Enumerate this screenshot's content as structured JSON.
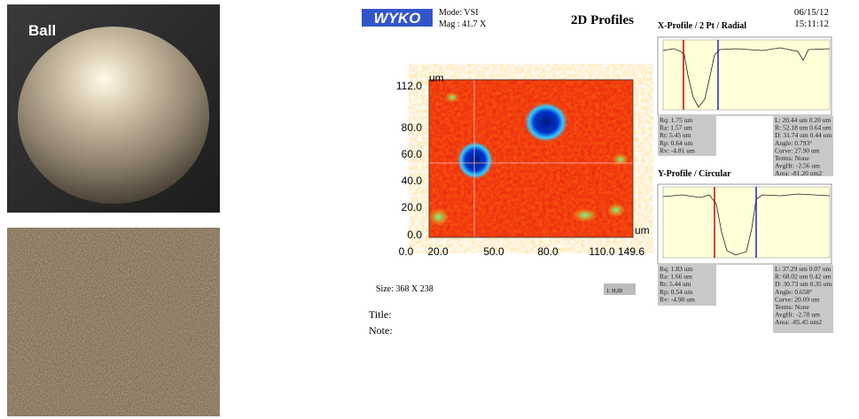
{
  "photo": {
    "label": "Ball"
  },
  "header": {
    "logo": "WYKO",
    "mode": "Mode: VSI",
    "mag": "Mag : 41.7 X",
    "title": "2D Profiles",
    "date": "06/15/12",
    "time": "15:11:12"
  },
  "map": {
    "y_unit": "um",
    "x_unit": "um",
    "yticks": [
      "112.0",
      "80.0",
      "60.0",
      "40.0",
      "20.0",
      "0.0"
    ],
    "xticks": [
      "0.0",
      "20.0",
      "50.0",
      "80.0",
      "110.0",
      "149.6"
    ],
    "size": "Size: 368 X 238",
    "box": "1: H,III"
  },
  "x_profile": {
    "title": "X-Profile / 2 Pt / Radial",
    "stats_left": [
      "Rq: 1.75 um",
      "Ra: 1.57 um",
      "Rt: 5.45 um",
      "Rp: 0.64 um",
      "Rv: -4.81 um"
    ],
    "stats_right": [
      "L: 20.44 um  0.20 um",
      "R: 52.18 um  0.64 um",
      "D: 31.74 um  0.44 um",
      "Angle: 0.793°",
      "Curve: 27.90 um",
      "Terms: None",
      "AvgHt: -2.56 um",
      "Area: -81.20 um2"
    ]
  },
  "y_profile": {
    "title": "Y-Profile / Circular",
    "stats_left": [
      "Rq: 1.83 um",
      "Ra: 1.66 um",
      "Rt: 5.44 um",
      "Rp: 0.54 um",
      "Rv: -4.90 um"
    ],
    "stats_right": [
      "L: 37.29 um  0.07 um",
      "R: 68.02 um  0.42 um",
      "D: 30.73 um  0.35 um",
      "Angle: 0.658°",
      "Curve: 20.09 um",
      "Terms: None",
      "AvgHt: -2.78 um",
      "Area: -85.45 um2"
    ]
  },
  "footer": {
    "title": "Title:",
    "note": "Note:"
  }
}
